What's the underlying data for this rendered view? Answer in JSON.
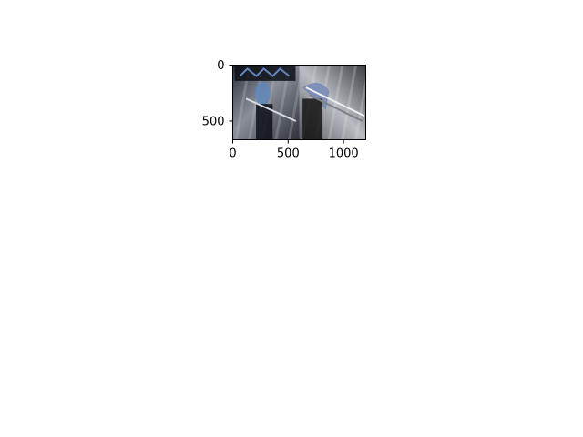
{
  "chart_data": {
    "type": "image",
    "title": "",
    "xlabel": "",
    "ylabel": "",
    "xlim": [
      0,
      1200
    ],
    "ylim": [
      667,
      0
    ],
    "x_ticks": [
      {
        "value": 0,
        "label": "0"
      },
      {
        "value": 500,
        "label": "500"
      },
      {
        "value": 1000,
        "label": "1000"
      }
    ],
    "y_ticks": [
      {
        "value": 0,
        "label": "0"
      },
      {
        "value": 500,
        "label": "500"
      }
    ],
    "panels": [
      {
        "x_range": [
          0,
          600
        ],
        "y_range": [
          0,
          667
        ],
        "colors": {
          "dark": "#0d1016",
          "mid": "#5c6170",
          "light": "#c9ccd3",
          "accent": "#5f86bd"
        }
      },
      {
        "x_range": [
          600,
          1200
        ],
        "y_range": [
          0,
          667
        ],
        "colors": {
          "dark": "#141414",
          "mid": "#7d8088",
          "light": "#e3e4e6",
          "accent": "#6e82b5"
        }
      }
    ]
  }
}
